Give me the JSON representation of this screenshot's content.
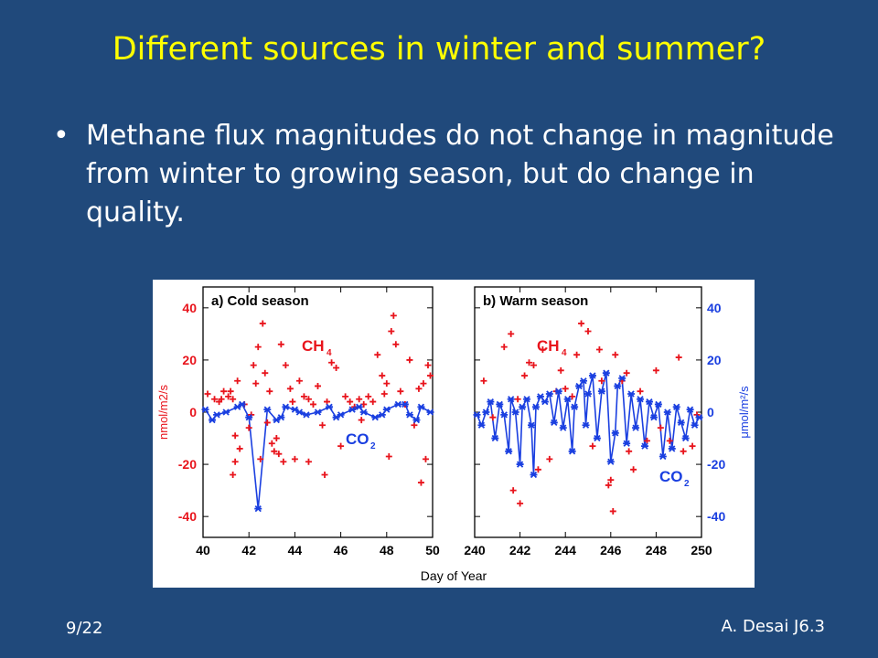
{
  "slide": {
    "title": "Different sources in winter and summer?",
    "bullet": "Methane flux magnitudes do not change in magnitude from winter to growing season, but do change in quality.",
    "footer_left": "9/22",
    "footer_right": "A. Desai J6.3"
  },
  "colors": {
    "background": "#20497b",
    "title": "#ffff00",
    "ch4": "#e8141c",
    "co2": "#1a3fe0"
  },
  "chart_data": {
    "type": "scatter",
    "xlabel": "Day of Year",
    "ylabel_left": "nmol/m2/s",
    "ylabel_right": "μmol/m²/s",
    "ylim": [
      -48,
      48
    ],
    "grid": false,
    "panels": [
      {
        "title": "a) Cold season",
        "xlim": [
          40,
          50
        ],
        "xticks": [
          "40",
          "42",
          "44",
          "46",
          "48",
          "50"
        ],
        "yticks": [
          "40",
          "20",
          "0",
          "-20",
          "-40"
        ],
        "ch4_label": "CH",
        "ch4_sub": "4",
        "co2_label": "CO",
        "co2_sub": "2",
        "series": [
          {
            "name": "CH4",
            "points": [
              [
                40.2,
                7
              ],
              [
                40.5,
                5
              ],
              [
                40.7,
                4
              ],
              [
                40.9,
                8
              ],
              [
                41.1,
                6
              ],
              [
                41.3,
                5
              ],
              [
                41.5,
                12
              ],
              [
                41.8,
                3
              ],
              [
                42.0,
                -6
              ],
              [
                42.1,
                -1
              ],
              [
                42.2,
                18
              ],
              [
                42.4,
                25
              ],
              [
                42.6,
                34
              ],
              [
                42.7,
                15
              ],
              [
                42.8,
                -4
              ],
              [
                42.9,
                8
              ],
              [
                43.0,
                -12
              ],
              [
                43.1,
                -15
              ],
              [
                43.2,
                -10
              ],
              [
                43.3,
                -16
              ],
              [
                43.4,
                26
              ],
              [
                43.6,
                18
              ],
              [
                43.8,
                9
              ],
              [
                44.0,
                -18
              ],
              [
                44.2,
                12
              ],
              [
                44.4,
                6
              ],
              [
                44.6,
                5
              ],
              [
                44.8,
                3
              ],
              [
                45.0,
                10
              ],
              [
                45.2,
                -5
              ],
              [
                45.4,
                4
              ],
              [
                45.6,
                19
              ],
              [
                45.8,
                17
              ],
              [
                46.0,
                -13
              ],
              [
                46.2,
                6
              ],
              [
                46.4,
                4
              ],
              [
                46.6,
                2
              ],
              [
                46.8,
                5
              ],
              [
                47.0,
                3
              ],
              [
                47.2,
                6
              ],
              [
                47.4,
                4
              ],
              [
                47.6,
                22
              ],
              [
                47.8,
                14
              ],
              [
                48.0,
                11
              ],
              [
                48.1,
                -17
              ],
              [
                48.2,
                31
              ],
              [
                48.3,
                37
              ],
              [
                48.4,
                26
              ],
              [
                48.6,
                8
              ],
              [
                48.8,
                3
              ],
              [
                49.0,
                20
              ],
              [
                49.2,
                -5
              ],
              [
                49.4,
                9
              ],
              [
                49.5,
                -27
              ],
              [
                49.7,
                -18
              ],
              [
                49.8,
                18
              ],
              [
                41.4,
                -9
              ],
              [
                41.6,
                -14
              ],
              [
                42.5,
                -18
              ],
              [
                43.5,
                -19
              ],
              [
                44.6,
                -19
              ],
              [
                45.3,
                -24
              ],
              [
                41.3,
                -24
              ],
              [
                41.4,
                -19
              ],
              [
                40.8,
                5
              ],
              [
                41.2,
                8
              ],
              [
                43.9,
                4
              ],
              [
                46.9,
                -3
              ],
              [
                47.9,
                7
              ],
              [
                49.6,
                11
              ],
              [
                49.9,
                14
              ],
              [
                42.3,
                11
              ]
            ]
          },
          {
            "name": "CO2",
            "points": [
              [
                40.1,
                1
              ],
              [
                40.6,
                -1
              ],
              [
                41.0,
                0
              ],
              [
                41.5,
                2
              ],
              [
                42.0,
                -2
              ],
              [
                42.4,
                -37
              ],
              [
                42.8,
                1
              ],
              [
                43.2,
                -3
              ],
              [
                43.6,
                2
              ],
              [
                44.0,
                1
              ],
              [
                44.5,
                -1
              ],
              [
                45.0,
                0
              ],
              [
                45.5,
                2
              ],
              [
                46.0,
                -1
              ],
              [
                46.5,
                1
              ],
              [
                47.0,
                0
              ],
              [
                47.5,
                -2
              ],
              [
                48.0,
                1
              ],
              [
                48.5,
                3
              ],
              [
                49.0,
                -1
              ],
              [
                49.5,
                2
              ],
              [
                49.9,
                0
              ],
              [
                40.4,
                -3
              ],
              [
                41.7,
                3
              ],
              [
                43.4,
                -2
              ],
              [
                44.2,
                0
              ],
              [
                45.8,
                -2
              ],
              [
                46.8,
                2
              ],
              [
                47.8,
                -1
              ],
              [
                48.8,
                3
              ],
              [
                49.3,
                -3
              ]
            ]
          }
        ]
      },
      {
        "title": "b) Warm season",
        "xlim": [
          240,
          250
        ],
        "xticks": [
          "240",
          "242",
          "244",
          "246",
          "248",
          "250"
        ],
        "yticks": [
          "40",
          "20",
          "0",
          "-20",
          "-40"
        ],
        "ch4_label": "CH",
        "ch4_sub": "4",
        "co2_label": "CO",
        "co2_sub": "2",
        "series": [
          {
            "name": "CH4",
            "points": [
              [
                240.4,
                12
              ],
              [
                240.8,
                -2
              ],
              [
                241.3,
                25
              ],
              [
                241.6,
                30
              ],
              [
                241.7,
                -30
              ],
              [
                241.9,
                5
              ],
              [
                242.0,
                -35
              ],
              [
                242.2,
                14
              ],
              [
                242.4,
                19
              ],
              [
                242.6,
                18
              ],
              [
                242.8,
                -22
              ],
              [
                243.0,
                24
              ],
              [
                243.3,
                -18
              ],
              [
                243.6,
                8
              ],
              [
                244.0,
                9
              ],
              [
                244.3,
                6
              ],
              [
                244.7,
                34
              ],
              [
                245.0,
                31
              ],
              [
                245.2,
                -13
              ],
              [
                245.6,
                12
              ],
              [
                245.9,
                -28
              ],
              [
                246.0,
                -26
              ],
              [
                246.1,
                -38
              ],
              [
                246.2,
                22
              ],
              [
                246.5,
                12
              ],
              [
                246.8,
                -15
              ],
              [
                247.0,
                -22
              ],
              [
                247.3,
                8
              ],
              [
                247.6,
                -11
              ],
              [
                248.0,
                16
              ],
              [
                248.2,
                -6
              ],
              [
                248.6,
                -11
              ],
              [
                249.0,
                21
              ],
              [
                249.2,
                -15
              ],
              [
                249.6,
                -13
              ],
              [
                249.8,
                -1
              ],
              [
                244.5,
                22
              ],
              [
                245.5,
                24
              ],
              [
                246.7,
                15
              ],
              [
                243.8,
                16
              ]
            ]
          },
          {
            "name": "CO2",
            "points": [
              [
                240.1,
                -1
              ],
              [
                240.3,
                -5
              ],
              [
                240.5,
                0
              ],
              [
                240.7,
                4
              ],
              [
                240.9,
                -10
              ],
              [
                241.1,
                3
              ],
              [
                241.3,
                -1
              ],
              [
                241.5,
                -15
              ],
              [
                241.6,
                5
              ],
              [
                241.8,
                0
              ],
              [
                242.0,
                -20
              ],
              [
                242.1,
                2
              ],
              [
                242.3,
                5
              ],
              [
                242.5,
                -5
              ],
              [
                242.6,
                -24
              ],
              [
                242.7,
                2
              ],
              [
                242.9,
                6
              ],
              [
                243.1,
                4
              ],
              [
                243.3,
                7
              ],
              [
                243.5,
                -4
              ],
              [
                243.7,
                8
              ],
              [
                243.9,
                -6
              ],
              [
                244.1,
                5
              ],
              [
                244.3,
                -15
              ],
              [
                244.4,
                2
              ],
              [
                244.6,
                10
              ],
              [
                244.8,
                12
              ],
              [
                244.9,
                -5
              ],
              [
                245.0,
                7
              ],
              [
                245.2,
                14
              ],
              [
                245.4,
                -10
              ],
              [
                245.6,
                8
              ],
              [
                245.8,
                15
              ],
              [
                246.0,
                -19
              ],
              [
                246.2,
                -8
              ],
              [
                246.3,
                10
              ],
              [
                246.5,
                13
              ],
              [
                246.7,
                -12
              ],
              [
                246.9,
                7
              ],
              [
                247.1,
                -6
              ],
              [
                247.3,
                5
              ],
              [
                247.5,
                -13
              ],
              [
                247.7,
                4
              ],
              [
                247.9,
                -2
              ],
              [
                248.1,
                3
              ],
              [
                248.3,
                -17
              ],
              [
                248.5,
                0
              ],
              [
                248.7,
                -14
              ],
              [
                248.9,
                2
              ],
              [
                249.1,
                -4
              ],
              [
                249.3,
                -10
              ],
              [
                249.5,
                1
              ],
              [
                249.7,
                -5
              ],
              [
                249.9,
                -2
              ]
            ]
          }
        ]
      }
    ]
  }
}
